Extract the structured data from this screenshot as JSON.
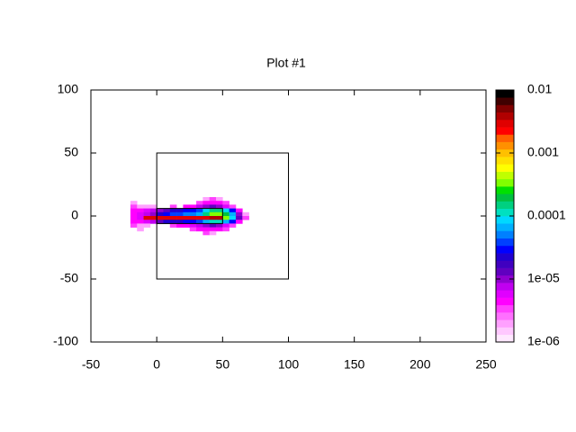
{
  "chart_data": {
    "type": "heatmap",
    "title": "Plot #1",
    "xlim": [
      -50,
      250
    ],
    "ylim": [
      -100,
      100
    ],
    "xticks": [
      -50,
      0,
      50,
      100,
      150,
      200,
      250
    ],
    "yticks": [
      -100,
      -50,
      0,
      50,
      100
    ],
    "zlim": [
      1e-06,
      0.01
    ],
    "zscale": "log",
    "zticks": [
      {
        "value": 1e-06,
        "label": "1e-06"
      },
      {
        "value": 1e-05,
        "label": "1e-05"
      },
      0.0001,
      0.001,
      0.01
    ],
    "palette": [
      "#ffe8ff",
      "#ffc8ff",
      "#ffa0ff",
      "#ff70ff",
      "#ff40ff",
      "#ff00ff",
      "#e000ff",
      "#c000f0",
      "#9000d0",
      "#6000c0",
      "#4000c0",
      "#2000d0",
      "#0000ff",
      "#0040ff",
      "#0080ff",
      "#00b0ff",
      "#00d8ff",
      "#00e0c0",
      "#00d080",
      "#00c040",
      "#00e000",
      "#80ff00",
      "#c0ff00",
      "#ffff00",
      "#ffe000",
      "#ffc000",
      "#ff9000",
      "#ff6000",
      "#ff0000",
      "#e00000",
      "#b00000",
      "#800000",
      "#400000",
      "#000000"
    ],
    "x": [
      -17.5,
      -12.5,
      -7.5,
      -2.5,
      2.5,
      7.5,
      12.5,
      17.5,
      22.5,
      27.5,
      32.5,
      37.5,
      42.5,
      47.5,
      52.5,
      57.5,
      62.5,
      67.5
    ],
    "y": [
      13.5,
      10.5,
      7.5,
      4.5,
      1.5,
      -1.5,
      -4.5,
      -7.5,
      -10.5,
      -13.5
    ],
    "z": [
      [
        null,
        null,
        null,
        null,
        null,
        null,
        null,
        null,
        null,
        null,
        null,
        2e-06,
        3e-06,
        2e-06,
        null,
        null,
        null,
        null
      ],
      [
        2e-06,
        null,
        null,
        null,
        null,
        null,
        null,
        null,
        null,
        null,
        3e-06,
        4e-06,
        5e-06,
        4e-06,
        3e-06,
        null,
        null,
        null
      ],
      [
        3e-06,
        2e-06,
        2e-06,
        2e-06,
        null,
        null,
        3e-06,
        null,
        4e-06,
        5e-06,
        8e-06,
        1e-05,
        1.2e-05,
        1e-05,
        6e-06,
        3e-06,
        null,
        null
      ],
      [
        4e-06,
        5e-06,
        6e-06,
        7e-06,
        1e-05,
        1.5e-05,
        2e-05,
        2.5e-05,
        3e-05,
        3e-05,
        4e-05,
        8e-05,
        0.00015,
        0.00015,
        8e-05,
        3e-05,
        5e-06,
        null
      ],
      [
        5e-06,
        6e-06,
        8e-06,
        1e-05,
        2e-05,
        3e-05,
        3.5e-05,
        4e-05,
        5e-05,
        5e-05,
        7e-05,
        0.00015,
        0.0003,
        0.0003,
        0.0002,
        6e-05,
        1e-05,
        2e-06
      ],
      [
        5e-06,
        6e-06,
        0.003,
        0.003,
        0.003,
        0.003,
        0.003,
        0.003,
        0.003,
        0.003,
        0.003,
        0.003,
        0.004,
        0.004,
        0.0003,
        8e-05,
        1.5e-05,
        3e-06
      ],
      [
        4e-06,
        5e-06,
        6e-06,
        8e-06,
        1.5e-05,
        2e-05,
        2e-05,
        2.5e-05,
        3e-05,
        3e-05,
        4e-05,
        7e-05,
        0.00012,
        0.00012,
        7e-05,
        3e-05,
        5e-06,
        null
      ],
      [
        3e-06,
        2e-06,
        2e-06,
        null,
        null,
        null,
        3e-06,
        4e-06,
        5e-06,
        6e-06,
        8e-06,
        1e-05,
        1.2e-05,
        1e-05,
        6e-06,
        3e-06,
        null,
        null
      ],
      [
        null,
        2e-06,
        null,
        null,
        null,
        null,
        null,
        null,
        null,
        3e-06,
        4e-06,
        5e-06,
        5e-06,
        4e-06,
        3e-06,
        null,
        null,
        null
      ],
      [
        null,
        null,
        null,
        null,
        null,
        null,
        null,
        null,
        null,
        null,
        null,
        3e-06,
        2e-06,
        null,
        null,
        null,
        null,
        null
      ]
    ],
    "rectangles": [
      {
        "x": [
          0,
          100
        ],
        "y": [
          -50,
          50
        ]
      },
      {
        "x": [
          0,
          50
        ],
        "y": [
          -6,
          6
        ]
      }
    ]
  }
}
